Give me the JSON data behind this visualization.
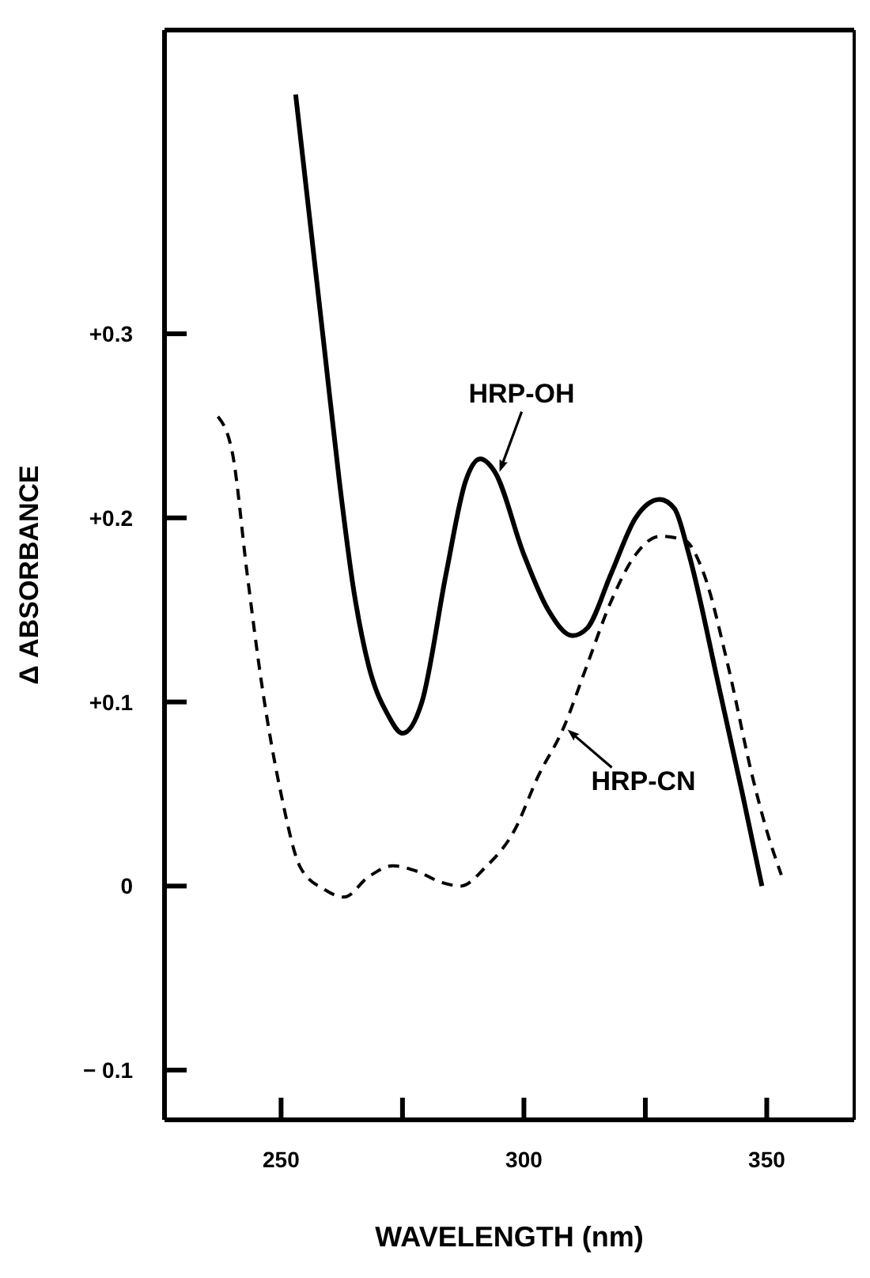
{
  "chart_data": {
    "type": "line",
    "xlabel": "WAVELENGTH (nm)",
    "ylabel": "Δ ABSORBANCE",
    "xlim": [
      226,
      368
    ],
    "xticks": [
      250,
      {
        "value": 275,
        "label": null
      },
      300,
      {
        "value": 325,
        "label": null
      },
      350
    ],
    "ylim": [
      -0.127,
      0.465
    ],
    "yticks": [
      {
        "value": -0.1,
        "label": "− 0.1"
      },
      {
        "value": 0,
        "label": "0"
      },
      {
        "value": 0.1,
        "label": "+0.1"
      },
      {
        "value": 0.2,
        "label": "+0.2"
      },
      {
        "value": 0.3,
        "label": "+0.3"
      }
    ],
    "grid": false,
    "marker": "none",
    "series": [
      {
        "name": "HRP-OH",
        "color": "#000000",
        "line_style": "solid",
        "x": [
          253,
          256,
          259,
          262,
          265,
          268,
          272,
          275,
          279,
          284,
          288,
          291,
          294,
          300,
          305,
          310,
          313,
          318,
          323,
          328,
          331,
          334,
          340,
          345,
          349
        ],
        "values": [
          0.43,
          0.36,
          0.29,
          0.22,
          0.16,
          0.12,
          0.093,
          0.083,
          0.1,
          0.17,
          0.22,
          0.232,
          0.225,
          0.18,
          0.15,
          0.136,
          0.14,
          0.17,
          0.2,
          0.21,
          0.205,
          0.18,
          0.11,
          0.05,
          0
        ]
      },
      {
        "name": "HRP-CN",
        "color": "#000000",
        "line_style": "dashed",
        "x": [
          237,
          240,
          243,
          246,
          250,
          254,
          259,
          263,
          268,
          273,
          278,
          283,
          287,
          292,
          298,
          303,
          308,
          313,
          318,
          323,
          328,
          333,
          337,
          342,
          347,
          350,
          353
        ],
        "values": [
          0.255,
          0.235,
          0.17,
          0.11,
          0.05,
          0.01,
          -0.002,
          -0.006,
          0.005,
          0.011,
          0.008,
          0.002,
          0,
          0.01,
          0.03,
          0.06,
          0.085,
          0.12,
          0.155,
          0.18,
          0.19,
          0.188,
          0.17,
          0.12,
          0.06,
          0.03,
          0.006
        ]
      }
    ]
  }
}
